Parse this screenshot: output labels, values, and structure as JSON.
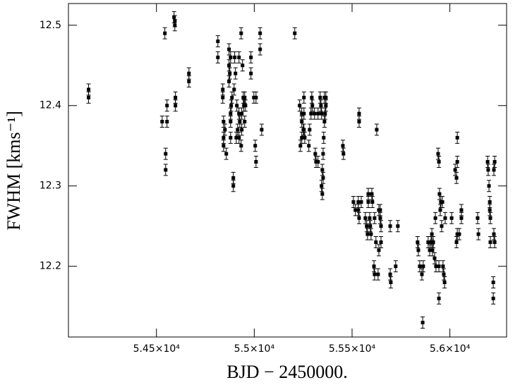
{
  "chart_data": {
    "type": "scatter",
    "xlabel": "BJD − 2450000.",
    "ylabel": "FWHM [kms⁻¹]",
    "xlim": [
      54050,
      56290
    ],
    "ylim": [
      12.112,
      12.527
    ],
    "xticks": [
      {
        "value": 54500,
        "label": "5.45×10⁴"
      },
      {
        "value": 55000,
        "label": "5.5×10⁴"
      },
      {
        "value": 55500,
        "label": "5.55×10⁴"
      },
      {
        "value": 56000,
        "label": "5.6×10⁴"
      }
    ],
    "yticks": [
      12.2,
      12.3,
      12.4,
      12.5
    ],
    "color": "#000000",
    "error": 0.007,
    "x": [
      54153,
      54153,
      54543,
      54590,
      54594,
      54594,
      54529,
      54554,
      54554,
      54597,
      54597,
      54547,
      54547,
      54666,
      54666,
      54814,
      54814,
      54839,
      54839,
      54843,
      54843,
      54843,
      54857,
      54850,
      54871,
      54879,
      54871,
      54875,
      54871,
      54879,
      54879,
      54879,
      54886,
      54882,
      54893,
      54893,
      54897,
      54900,
      54904,
      54908,
      54911,
      54915,
      54922,
      54922,
      54922,
      54926,
      54933,
      54933,
      54936,
      54936,
      54940,
      54944,
      54947,
      54951,
      54955,
      54951,
      54983,
      54983,
      54998,
      55009,
      55005,
      55009,
      55030,
      55030,
      55038,
      55207,
      55232,
      55236,
      55243,
      55243,
      55243,
      55251,
      55254,
      55254,
      55254,
      55258,
      55279,
      55283,
      55290,
      55294,
      55297,
      55308,
      55312,
      55316,
      55326,
      55326,
      55337,
      55341,
      55344,
      55344,
      55348,
      55352,
      55348,
      55352,
      55355,
      55359,
      55362,
      55359,
      55366,
      55366,
      55453,
      55456,
      55507,
      55517,
      55532,
      55532,
      55536,
      55547,
      55536,
      55536,
      55568,
      55575,
      55579,
      55583,
      55583,
      55590,
      55593,
      55597,
      55601,
      55604,
      55612,
      55615,
      55615,
      55622,
      55626,
      55633,
      55637,
      55637,
      55644,
      55644,
      55648,
      55648,
      55695,
      55695,
      55698,
      55723,
      55734,
      55835,
      55839,
      55846,
      55857,
      55861,
      55864,
      55889,
      55897,
      55904,
      55908,
      55911,
      55915,
      55922,
      55929,
      55926,
      55940,
      55944,
      55944,
      55944,
      55947,
      55951,
      55954,
      55958,
      55962,
      55965,
      55969,
      55973,
      55976,
      56009,
      56027,
      56034,
      56038,
      56038,
      56038,
      56034,
      56048,
      56059,
      56059,
      56142,
      56146,
      56193,
      56196,
      56200,
      56204,
      56204,
      56207,
      56207,
      56222,
      56222,
      56225,
      56229,
      56225,
      56229
    ],
    "values": [
      12.42,
      12.41,
      12.49,
      12.51,
      12.505,
      12.5,
      12.38,
      12.38,
      12.4,
      12.4,
      12.41,
      12.34,
      12.32,
      12.44,
      12.43,
      12.48,
      12.46,
      12.42,
      12.41,
      12.38,
      12.36,
      12.35,
      12.34,
      12.37,
      12.47,
      12.46,
      12.45,
      12.44,
      12.43,
      12.39,
      12.38,
      12.36,
      12.41,
      12.4,
      12.31,
      12.3,
      12.42,
      12.46,
      12.44,
      12.36,
      12.4,
      12.37,
      12.46,
      12.39,
      12.36,
      12.38,
      12.49,
      12.35,
      12.39,
      12.37,
      12.45,
      12.41,
      12.4,
      12.41,
      12.4,
      12.38,
      12.46,
      12.44,
      12.41,
      12.41,
      12.35,
      12.33,
      12.47,
      12.49,
      12.37,
      12.49,
      12.4,
      12.35,
      12.39,
      12.38,
      12.36,
      12.37,
      12.41,
      12.39,
      12.37,
      12.36,
      12.35,
      12.37,
      12.39,
      12.41,
      12.4,
      12.39,
      12.34,
      12.33,
      12.33,
      12.39,
      12.41,
      12.4,
      12.39,
      12.3,
      12.29,
      12.31,
      12.32,
      12.34,
      12.36,
      12.38,
      12.39,
      12.41,
      12.4,
      12.41,
      12.35,
      12.34,
      12.28,
      12.27,
      12.28,
      12.27,
      12.26,
      12.28,
      12.38,
      12.39,
      12.26,
      12.25,
      12.24,
      12.28,
      12.29,
      12.26,
      12.25,
      12.24,
      12.29,
      12.28,
      12.2,
      12.19,
      12.26,
      12.23,
      12.37,
      12.19,
      12.27,
      12.22,
      12.27,
      12.26,
      12.25,
      12.23,
      12.25,
      12.19,
      12.18,
      12.2,
      12.25,
      12.23,
      12.22,
      12.2,
      12.19,
      12.13,
      12.2,
      12.23,
      12.22,
      12.23,
      12.24,
      12.22,
      12.23,
      12.21,
      12.2,
      12.26,
      12.34,
      12.33,
      12.2,
      12.16,
      12.29,
      12.27,
      12.28,
      12.25,
      12.28,
      12.2,
      12.19,
      12.18,
      12.26,
      12.26,
      12.32,
      12.31,
      12.36,
      12.33,
      12.24,
      12.23,
      12.24,
      12.27,
      12.26,
      12.26,
      12.24,
      12.33,
      12.32,
      12.3,
      12.28,
      12.27,
      12.26,
      12.23,
      12.18,
      12.16,
      12.24,
      12.33,
      12.32,
      12.23
    ]
  }
}
